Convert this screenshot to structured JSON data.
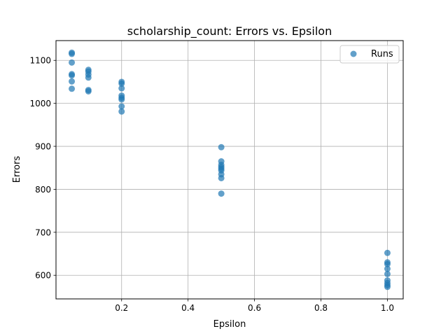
{
  "chart_data": {
    "type": "scatter",
    "title": "scholarship_count: Errors vs. Epsilon",
    "xlabel": "Epsilon",
    "ylabel": "Errors",
    "xlim": [
      0.0025,
      1.0475
    ],
    "ylim": [
      545,
      1146
    ],
    "xticks": [
      0.2,
      0.4,
      0.6,
      0.8,
      1.0
    ],
    "xtick_labels": [
      "0.2",
      "0.4",
      "0.6",
      "0.8",
      "1.0"
    ],
    "yticks": [
      600,
      700,
      800,
      900,
      1000,
      1100
    ],
    "ytick_labels": [
      "600",
      "700",
      "800",
      "900",
      "1000",
      "1100"
    ],
    "grid": true,
    "legend": {
      "position": "top-right",
      "entries": [
        "Runs"
      ]
    },
    "series": [
      {
        "name": "Runs",
        "color": "#1f77b4",
        "points": [
          {
            "x": 0.05,
            "y": 1118
          },
          {
            "x": 0.05,
            "y": 1115
          },
          {
            "x": 0.05,
            "y": 1095
          },
          {
            "x": 0.05,
            "y": 1068
          },
          {
            "x": 0.05,
            "y": 1065
          },
          {
            "x": 0.05,
            "y": 1051
          },
          {
            "x": 0.05,
            "y": 1034
          },
          {
            "x": 0.1,
            "y": 1078
          },
          {
            "x": 0.1,
            "y": 1074
          },
          {
            "x": 0.1,
            "y": 1067
          },
          {
            "x": 0.1,
            "y": 1060
          },
          {
            "x": 0.1,
            "y": 1031
          },
          {
            "x": 0.1,
            "y": 1028
          },
          {
            "x": 0.2,
            "y": 1050
          },
          {
            "x": 0.2,
            "y": 1046
          },
          {
            "x": 0.2,
            "y": 1035
          },
          {
            "x": 0.2,
            "y": 1018
          },
          {
            "x": 0.2,
            "y": 1013
          },
          {
            "x": 0.2,
            "y": 1009
          },
          {
            "x": 0.2,
            "y": 993
          },
          {
            "x": 0.2,
            "y": 981
          },
          {
            "x": 0.5,
            "y": 898
          },
          {
            "x": 0.5,
            "y": 865
          },
          {
            "x": 0.5,
            "y": 857
          },
          {
            "x": 0.5,
            "y": 852
          },
          {
            "x": 0.5,
            "y": 848
          },
          {
            "x": 0.5,
            "y": 844
          },
          {
            "x": 0.5,
            "y": 835
          },
          {
            "x": 0.5,
            "y": 826
          },
          {
            "x": 0.5,
            "y": 790
          },
          {
            "x": 1.0,
            "y": 652
          },
          {
            "x": 1.0,
            "y": 630
          },
          {
            "x": 1.0,
            "y": 626
          },
          {
            "x": 1.0,
            "y": 615
          },
          {
            "x": 1.0,
            "y": 603
          },
          {
            "x": 1.0,
            "y": 588
          },
          {
            "x": 1.0,
            "y": 582
          },
          {
            "x": 1.0,
            "y": 577
          },
          {
            "x": 1.0,
            "y": 573
          }
        ]
      }
    ]
  }
}
